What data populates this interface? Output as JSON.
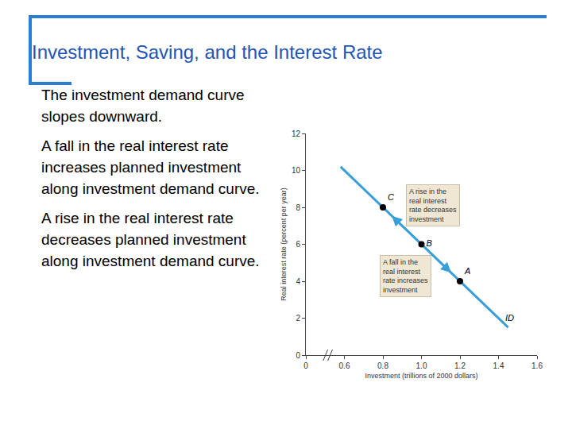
{
  "slide": {
    "title": "Investment, Saving, and the Interest Rate",
    "paragraphs": [
      "The investment demand curve slopes downward.",
      "A fall in the real interest rate increases planned investment along investment demand curve.",
      "A rise in the real interest rate decreases planned investment along investment demand curve."
    ]
  },
  "chart_data": {
    "type": "line",
    "xlabel": "Investment (trillions of 2000 dollars)",
    "ylabel": "Real interest rate (percent per year)",
    "series": [
      {
        "name": "ID",
        "type": "line",
        "color": "#3a9fd8",
        "x": [
          0.58,
          1.45
        ],
        "values": [
          10.2,
          1.5
        ]
      },
      {
        "type": "scatter",
        "color": "#000000",
        "marker": "circle",
        "x": [
          1.2,
          1.0,
          0.8
        ],
        "values": [
          4,
          6,
          8
        ],
        "labels": [
          "A",
          "B",
          "C"
        ]
      }
    ],
    "xlim": [
      0.4,
      1.6
    ],
    "xticks": [
      {
        "value": 0.4,
        "label": "0"
      },
      0.6,
      0.8,
      {
        "value": 1,
        "label": "1.0"
      },
      1.2,
      1.4,
      1.6
    ],
    "ylim": [
      0,
      12
    ],
    "yticks": [
      0,
      2,
      4,
      6,
      8,
      10,
      12
    ],
    "grid": false,
    "annotations": [
      "A rise in the real interest rate decreases investment",
      "A fall in the real interest rate increases investment"
    ]
  }
}
